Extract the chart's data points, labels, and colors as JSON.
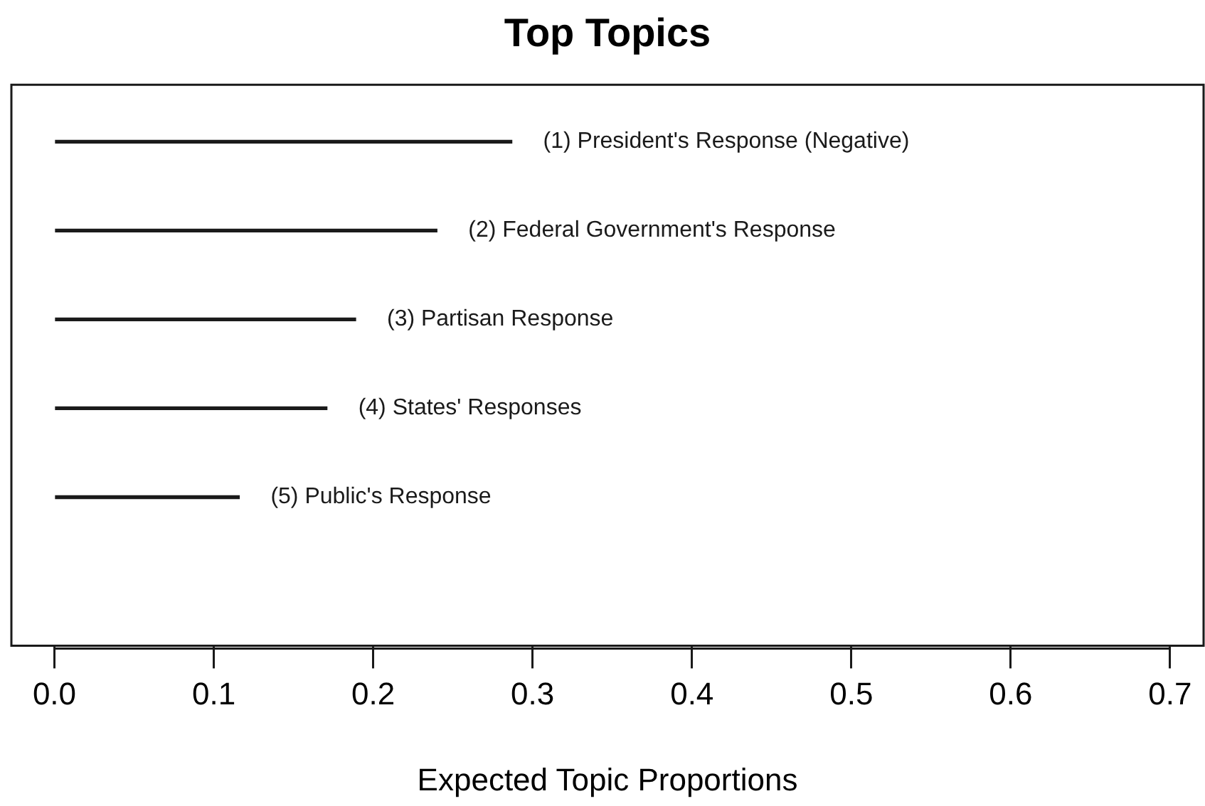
{
  "chart_data": {
    "type": "bar",
    "orientation": "horizontal",
    "title": "Top Topics",
    "xlabel": "Expected Topic Proportions",
    "categories": [
      "(1) President's Response (Negative)",
      "(2) Federal Government's Response",
      "(3) Partisan Response",
      "(4) States' Responses",
      "(5) Public's Response"
    ],
    "values": [
      0.287,
      0.24,
      0.189,
      0.171,
      0.116
    ],
    "color": "#1a1a1a",
    "xlim": [
      -0.027,
      0.721
    ],
    "xticks": [
      {
        "value": 0,
        "label": "0.0"
      },
      0.1,
      0.2,
      0.3,
      0.4,
      0.5,
      0.6,
      0.7
    ],
    "grid": false,
    "legend": false
  }
}
